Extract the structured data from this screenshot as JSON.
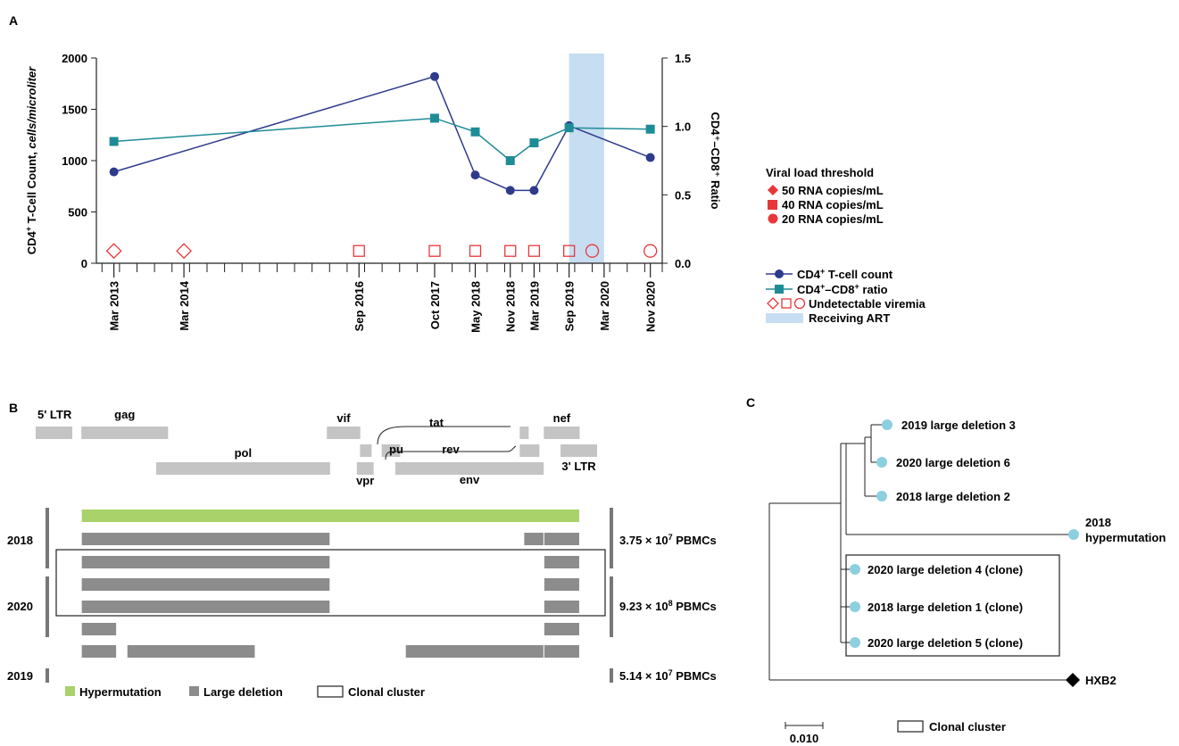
{
  "panels": {
    "a": "A",
    "b": "B",
    "c": "C"
  },
  "chart_data": [
    {
      "type": "line",
      "panel": "A",
      "ylabel_left_main": "CD4",
      "ylabel_left_sup": "+",
      "ylabel_left_rest": " T-Cell Count, ",
      "ylabel_left_unit": "cells/microliter",
      "ylabel_right": "CD4⁺–CD8⁺ Ratio",
      "ylim_left": [
        0,
        2000
      ],
      "yticks_left": [
        0,
        500,
        1000,
        1500,
        2000
      ],
      "ylim_right": [
        0,
        1.5
      ],
      "yticks_right": [
        "0.0",
        "0.5",
        "1.0",
        "1.5"
      ],
      "x_labels": [
        {
          "label": "Mar 2013",
          "t": 2013.17
        },
        {
          "label": "Mar 2014",
          "t": 2014.17
        },
        {
          "label": "Sep 2016",
          "t": 2016.67
        },
        {
          "label": "Oct 2017",
          "t": 2017.75
        },
        {
          "label": "May 2018",
          "t": 2018.33
        },
        {
          "label": "Nov 2018",
          "t": 2018.83
        },
        {
          "label": "Mar 2019",
          "t": 2019.17
        },
        {
          "label": "Sep 2019",
          "t": 2019.67
        },
        {
          "label": "Mar 2020",
          "t": 2020.17
        },
        {
          "label": "Nov 2020",
          "t": 2020.83
        }
      ],
      "xlim": [
        2012.92,
        2021.0
      ],
      "art_period": [
        2019.67,
        2020.17
      ],
      "series": [
        {
          "name": "CD4⁺ T-cell count",
          "axis": "left",
          "color": "#2e3a8c",
          "marker": "circle",
          "x": [
            2013.17,
            2017.75,
            2018.33,
            2018.83,
            2019.17,
            2019.67,
            2020.83
          ],
          "y": [
            890,
            1820,
            860,
            710,
            710,
            1340,
            1030
          ]
        },
        {
          "name": "CD4⁺–CD8⁺ ratio",
          "axis": "right",
          "color": "#1e8c96",
          "marker": "square",
          "x": [
            2013.17,
            2017.75,
            2018.33,
            2018.83,
            2019.17,
            2019.67,
            2020.83
          ],
          "y": [
            0.89,
            1.06,
            0.96,
            0.75,
            0.88,
            0.99,
            0.98
          ]
        }
      ],
      "viremia": [
        {
          "t": 2013.17,
          "shape": "diamond"
        },
        {
          "t": 2014.17,
          "shape": "diamond"
        },
        {
          "t": 2016.67,
          "shape": "square"
        },
        {
          "t": 2017.75,
          "shape": "square"
        },
        {
          "t": 2018.33,
          "shape": "square"
        },
        {
          "t": 2018.83,
          "shape": "square"
        },
        {
          "t": 2019.17,
          "shape": "square"
        },
        {
          "t": 2019.67,
          "shape": "square"
        },
        {
          "t": 2020.0,
          "shape": "circle"
        },
        {
          "t": 2020.83,
          "shape": "circle"
        }
      ],
      "viremia_level": 0.09,
      "threshold_legend": {
        "title": "Viral load threshold",
        "items": [
          {
            "shape": "diamond",
            "label": "50 RNA copies/mL"
          },
          {
            "shape": "square",
            "label": "40 RNA copies/mL"
          },
          {
            "shape": "circle",
            "label": "20 RNA copies/mL"
          }
        ]
      },
      "series_legend": [
        {
          "kind": "line-circle",
          "main": "CD4",
          "sup": "+",
          "rest": " T-cell count"
        },
        {
          "kind": "line-square",
          "main": "CD4",
          "sup": "+",
          "rest": "–CD8",
          "sup2": "+",
          "rest2": " ratio"
        },
        {
          "kind": "viremia",
          "main": "Undetectable viremia"
        },
        {
          "kind": "art",
          "main": "Receiving ART"
        }
      ]
    },
    {
      "type": "table",
      "panel": "B",
      "genes": [
        {
          "name": "5' LTR",
          "start": 0,
          "end": 634
        },
        {
          "name": "gag",
          "start": 790,
          "end": 2292
        },
        {
          "name": "pol",
          "start": 2085,
          "end": 5096
        },
        {
          "name": "vif",
          "start": 5041,
          "end": 5619
        },
        {
          "name": "vpr",
          "start": 5559,
          "end": 5850
        },
        {
          "name": "tat",
          "start": 5831,
          "end": 6045
        },
        {
          "name": "vpu",
          "start": 6062,
          "end": 6310
        },
        {
          "name": "rev",
          "start": 5970,
          "end": 6045
        },
        {
          "name": "env",
          "start": 6225,
          "end": 8795
        },
        {
          "name": "nef",
          "start": 8797,
          "end": 9417
        },
        {
          "name": "3' LTR",
          "start": 9086,
          "end": 9719
        }
      ],
      "proviruses": [
        {
          "year": "2018",
          "kind": "hypermutation",
          "segments": [
            [
              790,
              9417
            ]
          ]
        },
        {
          "year": "2018",
          "kind": "deletion",
          "segments": [
            [
              790,
              5096
            ],
            [
              8450,
              8797
            ],
            [
              8797,
              9417
            ]
          ]
        },
        {
          "year": "2018",
          "kind": "deletion",
          "segments": [
            [
              790,
              5096
            ],
            [
              8797,
              9417
            ]
          ]
        },
        {
          "year": "2020",
          "kind": "deletion",
          "segments": [
            [
              790,
              5096
            ],
            [
              8797,
              9417
            ]
          ]
        },
        {
          "year": "2020",
          "kind": "deletion",
          "segments": [
            [
              790,
              5096
            ],
            [
              8797,
              9417
            ]
          ]
        },
        {
          "year": "2020",
          "kind": "deletion",
          "segments": [
            [
              790,
              1400
            ],
            [
              8797,
              9417
            ]
          ]
        },
        {
          "year": "2019",
          "kind": "deletion",
          "segments": [
            [
              790,
              1400
            ],
            [
              1580,
              3800
            ],
            [
              6400,
              8797
            ],
            [
              8797,
              9417
            ]
          ]
        }
      ],
      "groups": [
        {
          "year": "2018",
          "cells_main": "3.75 × 10",
          "cells_exp": "7",
          "cells_unit": " PBMCs"
        },
        {
          "year": "2020",
          "cells_main": "9.23 × 10",
          "cells_exp": "8",
          "cells_unit": " PBMCs"
        },
        {
          "year": "2019",
          "cells_main": "5.14 × 10",
          "cells_exp": "7",
          "cells_unit": " PBMCs"
        }
      ],
      "legend": {
        "hypermutation": "Hypermutation",
        "deletion": "Large deletion",
        "clonal": "Clonal cluster"
      },
      "colors": {
        "hypermutation": "#a9d26a",
        "deletion": "#8c8c8c",
        "gene": "#c4c4c4"
      }
    },
    {
      "type": "tree",
      "panel": "C",
      "leaves": [
        {
          "label": "2019 large deletion 3",
          "color": "#8ccfdf"
        },
        {
          "label": "2020 large deletion 6",
          "color": "#8ccfdf"
        },
        {
          "label": "2018 large deletion 2",
          "color": "#8ccfdf"
        },
        {
          "label": "2018\nhypermutation",
          "color": "#8ccfdf"
        },
        {
          "label": "2020 large deletion 4 (clone)",
          "color": "#8ccfdf"
        },
        {
          "label": "2018 large deletion 1 (clone)",
          "color": "#8ccfdf"
        },
        {
          "label": "2020 large deletion 5 (clone)",
          "color": "#8ccfdf"
        },
        {
          "label": "HXB2",
          "color": "#000000"
        }
      ],
      "scale_label": "0.010",
      "legend_clonal": "Clonal cluster"
    }
  ]
}
